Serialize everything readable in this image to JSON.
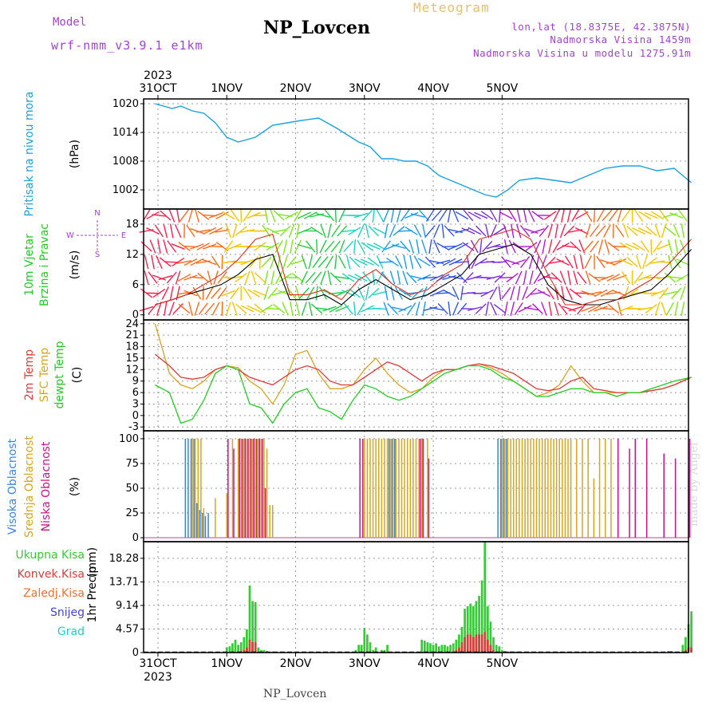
{
  "header": {
    "model_label": "Model",
    "model_name": "wrf-nmm_v3.9.1 e1km",
    "station_title": "NP_Lovcen",
    "meteogram_label": "Meteogram",
    "info_lonlat": "lon,lat (18.8375E, 42.3875N)",
    "info_altitude": "Nadmorska Visina 1459m",
    "info_model_altitude": "Nadmorska Visina u modelu 1275.91m",
    "bottom_station": "NP_Lovcen",
    "made_by": "made by Angel",
    "top_year": "2023",
    "bottom_year": "2023"
  },
  "colors": {
    "pressure": "#1ba1e2",
    "wind_speed": "#000000",
    "wind_gust": "#e0301e",
    "temp_2m": "#e03a3a",
    "temp_sfc": "#d9a520",
    "dewpoint": "#22cc22",
    "cloud_high": "#3a86dd",
    "cloud_mid": "#d9a520",
    "cloud_low": "#cc1188",
    "precip_total": "#33cc33",
    "precip_conv": "#e03a3a",
    "precip_frozen": "#f07030",
    "snow": "#4444dd",
    "graupel": "#22cccc",
    "grid": "#999999",
    "wind_compass": "#a63fd8"
  },
  "chart_data": [
    {
      "type": "line",
      "panel": "pressure",
      "ylabel": "Pritisak na nivou mora",
      "yunit": "(hPa)",
      "y_ticks": [
        1002,
        1008,
        1014,
        1020
      ],
      "ylim": [
        998,
        1021
      ],
      "x_ticks": [
        "31OCT",
        "1NOV",
        "2NOV",
        "3NOV",
        "4NOV",
        "5NOV"
      ],
      "x_hours": [
        -1,
        5,
        8,
        12,
        16,
        20,
        24,
        28,
        34,
        40,
        45,
        50,
        56,
        62,
        66,
        70,
        74,
        78,
        82,
        86,
        90,
        94,
        98,
        102,
        106,
        110,
        114,
        118,
        122,
        126,
        132,
        138,
        144,
        150,
        156,
        162,
        168,
        174,
        180,
        186
      ],
      "series": [
        {
          "values": [
            1020,
            1019,
            1019.5,
            1018.5,
            1018,
            1016,
            1013,
            1012,
            1013,
            1015.5,
            1016,
            1016.5,
            1017,
            1015,
            1013.5,
            1012,
            1011,
            1008.5,
            1008.5,
            1008,
            1008,
            1007,
            1005,
            1004,
            1003,
            1002,
            1001,
            1000.5,
            1002,
            1004,
            1004.5,
            1004,
            1003.5,
            1005,
            1006.5,
            1007,
            1007,
            1006,
            1006.5,
            1003.5
          ]
        }
      ]
    },
    {
      "type": "line",
      "panel": "wind",
      "ylabel": "10m Vjetar Brzina i Pravac",
      "yunit": "(m/s)",
      "y_ticks": [
        0,
        6,
        12,
        18
      ],
      "ylim": [
        -1,
        21
      ],
      "x_hours": [
        -1,
        5,
        10,
        16,
        22,
        28,
        34,
        40,
        46,
        52,
        58,
        64,
        70,
        76,
        82,
        88,
        94,
        100,
        106,
        112,
        118,
        124,
        130,
        136,
        142,
        148,
        154,
        160,
        166,
        172,
        178,
        186
      ],
      "series": [
        {
          "name": "speed",
          "values": [
            2,
            3,
            4,
            5,
            6,
            8,
            11,
            12,
            3,
            3,
            4,
            2,
            5,
            7,
            5,
            3,
            4,
            6,
            8,
            12,
            13,
            14,
            12,
            6,
            3,
            2,
            2,
            3,
            4,
            5,
            8,
            13
          ]
        },
        {
          "name": "gust",
          "values": [
            2,
            3,
            4,
            6,
            8,
            11,
            15,
            16,
            4,
            4,
            5,
            3,
            7,
            9,
            6,
            4,
            5,
            8,
            10,
            15,
            16,
            17,
            15,
            8,
            2,
            2,
            3,
            3,
            5,
            7,
            10,
            15
          ]
        }
      ],
      "compass": {
        "n": "N",
        "s": "S",
        "e": "E",
        "w": "W"
      }
    },
    {
      "type": "line",
      "panel": "temperature",
      "ylabel_lines": [
        "2m Temp",
        "SFC Temp",
        "dewpt Temp"
      ],
      "yunit": "(C)",
      "y_ticks": [
        -3,
        0,
        3,
        6,
        9,
        12,
        15,
        18,
        21,
        24
      ],
      "ylim": [
        -4,
        25
      ],
      "x_hours": [
        -1,
        4,
        8,
        12,
        16,
        20,
        24,
        28,
        32,
        36,
        40,
        44,
        48,
        52,
        56,
        60,
        64,
        68,
        72,
        76,
        80,
        84,
        88,
        92,
        96,
        100,
        104,
        108,
        112,
        116,
        120,
        124,
        128,
        132,
        136,
        140,
        144,
        148,
        152,
        156,
        160,
        164,
        168,
        172,
        176,
        180,
        186
      ],
      "series": [
        {
          "name": "2m Temp",
          "values": [
            16,
            13,
            10,
            9.5,
            10,
            12,
            13,
            12,
            10,
            9,
            8,
            10,
            12,
            13,
            12,
            9,
            8,
            8,
            10,
            12,
            14,
            13,
            11,
            9,
            11,
            12,
            12,
            13,
            13.5,
            13,
            12,
            11,
            9,
            7,
            6.5,
            7,
            9,
            10,
            7,
            6.5,
            6,
            6,
            6,
            6.5,
            7,
            8,
            10
          ]
        },
        {
          "name": "SFC Temp",
          "values": [
            24,
            11,
            8,
            7,
            9,
            12,
            13,
            12.5,
            9,
            7,
            3,
            8,
            16,
            17,
            11,
            7,
            7,
            8,
            12,
            15,
            11,
            8,
            6,
            7,
            10,
            12,
            12,
            13,
            13.5,
            12.5,
            11,
            9,
            7,
            5,
            6,
            8,
            13,
            9,
            6,
            6,
            6,
            6,
            6,
            6.5,
            7,
            8,
            10
          ]
        },
        {
          "name": "dewpt Temp",
          "values": [
            8,
            6,
            -2,
            -1,
            4,
            11,
            13,
            12,
            3,
            2,
            -2,
            3,
            6,
            7,
            2,
            1,
            -1,
            4,
            8,
            7,
            5,
            4,
            5,
            7,
            9,
            11,
            12,
            13,
            13,
            12,
            10,
            9,
            7,
            5,
            5,
            6,
            7,
            7,
            6,
            6,
            5,
            6,
            6,
            7,
            8,
            9,
            10
          ]
        }
      ]
    },
    {
      "type": "bar",
      "panel": "clouds",
      "ylabel_lines": [
        "Visoka Oblacnost",
        "Srednja Oblacnost",
        "Niska Oblacnost"
      ],
      "yunit": "(%)",
      "y_ticks": [
        0,
        25,
        50,
        75,
        100
      ],
      "ylim": [
        -4,
        108
      ],
      "x_hours": [
        10,
        11,
        12,
        13,
        14,
        15,
        16,
        17,
        18,
        20,
        24,
        26,
        28,
        29,
        30,
        31,
        32,
        33,
        34,
        35,
        36,
        37,
        38,
        39,
        40,
        42,
        45,
        51,
        60,
        62,
        66,
        69,
        70,
        71,
        72,
        73,
        74,
        75,
        76,
        77,
        78,
        79,
        80,
        81,
        82,
        83,
        84,
        85,
        86,
        87,
        88,
        89,
        90,
        91,
        92,
        94,
        96,
        104,
        108,
        110,
        112,
        116,
        119,
        120,
        121,
        122,
        123,
        124,
        125,
        126,
        127,
        128,
        129,
        130,
        131,
        132,
        133,
        134,
        135,
        136,
        137,
        138,
        139,
        140,
        141,
        142,
        143,
        144,
        146,
        148,
        150,
        152,
        154,
        156,
        158,
        160,
        162,
        164,
        166,
        170,
        172,
        176,
        178,
        180,
        182,
        185
      ],
      "series": [
        {
          "name": "Visoka Oblacnost",
          "values": [
            100,
            100,
            100,
            100,
            35,
            28,
            25,
            22,
            25,
            0,
            0,
            0,
            0,
            0,
            0,
            0,
            0,
            0,
            0,
            0,
            0,
            0,
            0,
            0,
            0,
            0,
            0,
            0,
            0,
            0,
            0,
            0,
            0,
            0,
            0,
            0,
            0,
            0,
            0,
            0,
            0,
            0,
            0,
            100,
            100,
            100,
            0,
            0,
            0,
            0,
            0,
            0,
            0,
            0,
            0,
            0,
            0,
            0,
            0,
            0,
            0,
            0,
            100,
            100,
            100,
            100,
            0,
            0,
            0,
            0,
            0,
            0,
            0,
            0,
            0,
            0,
            0,
            0,
            0,
            0,
            0,
            0,
            0,
            0,
            0,
            0,
            0,
            0,
            0,
            0,
            0,
            0,
            0,
            0,
            0,
            0,
            0,
            0,
            0,
            0,
            0,
            0,
            0,
            0,
            0,
            0
          ]
        },
        {
          "name": "Srednja Oblacnost",
          "values": [
            0,
            0,
            100,
            100,
            100,
            100,
            30,
            0,
            0,
            40,
            45,
            100,
            100,
            100,
            100,
            100,
            100,
            100,
            100,
            100,
            100,
            100,
            90,
            33,
            33,
            0,
            0,
            0,
            0,
            0,
            0,
            0,
            0,
            0,
            100,
            100,
            100,
            100,
            100,
            100,
            100,
            100,
            100,
            100,
            100,
            100,
            100,
            100,
            100,
            100,
            100,
            100,
            100,
            100,
            100,
            100,
            0,
            0,
            0,
            0,
            0,
            0,
            0,
            100,
            100,
            100,
            100,
            100,
            100,
            100,
            100,
            100,
            100,
            100,
            100,
            100,
            100,
            100,
            100,
            100,
            100,
            100,
            100,
            100,
            100,
            100,
            100,
            100,
            100,
            100,
            100,
            60,
            100,
            100,
            100,
            0,
            0,
            0,
            0,
            0,
            0,
            0,
            0,
            0,
            0,
            60
          ]
        },
        {
          "name": "Niska Oblacnost",
          "values": [
            0,
            0,
            0,
            0,
            0,
            0,
            0,
            0,
            0,
            0,
            100,
            90,
            100,
            100,
            100,
            100,
            100,
            100,
            100,
            100,
            100,
            50,
            0,
            0,
            0,
            0,
            0,
            0,
            0,
            0,
            0,
            0,
            100,
            100,
            0,
            0,
            0,
            0,
            0,
            0,
            0,
            0,
            0,
            0,
            0,
            0,
            0,
            0,
            0,
            0,
            0,
            0,
            0,
            100,
            100,
            80,
            0,
            0,
            0,
            0,
            0,
            0,
            0,
            0,
            0,
            0,
            0,
            0,
            0,
            0,
            0,
            0,
            0,
            0,
            0,
            0,
            0,
            0,
            0,
            0,
            0,
            0,
            0,
            0,
            0,
            0,
            0,
            0,
            0,
            0,
            0,
            0,
            0,
            0,
            0,
            100,
            0,
            90,
            100,
            100,
            0,
            85,
            0,
            80,
            0,
            100
          ]
        }
      ]
    },
    {
      "type": "bar",
      "panel": "precipitation",
      "ylabel": "1hr Precip",
      "yunit": "(mm)",
      "legend": [
        "Ukupna Kisa",
        "Konvek.Kisa",
        "Zaledj.Kisa",
        "Snijeg",
        "Grad"
      ],
      "y_ticks": [
        0,
        4.57,
        9.14,
        13.71,
        18.28
      ],
      "ylim": [
        0,
        21.5
      ],
      "x_hours": [
        24,
        25,
        26,
        27,
        28,
        29,
        30,
        31,
        32,
        33,
        34,
        35,
        36,
        37,
        38,
        40,
        69,
        70,
        71,
        72,
        73,
        74,
        75,
        76,
        78,
        79,
        80,
        92,
        93,
        94,
        95,
        96,
        97,
        98,
        99,
        100,
        101,
        102,
        103,
        104,
        105,
        106,
        107,
        108,
        109,
        110,
        111,
        112,
        113,
        114,
        115,
        116,
        117,
        118,
        119,
        120,
        121,
        122,
        123,
        124,
        125,
        126,
        178,
        179,
        183,
        184,
        185,
        186
      ],
      "series": [
        {
          "name": "Ukupna Kisa",
          "values": [
            1,
            1.2,
            1.8,
            2.5,
            1.5,
            2,
            3,
            4.5,
            13,
            10,
            9.8,
            1,
            0.5,
            0.5,
            0.3,
            0.2,
            0.5,
            1.5,
            1.5,
            4.8,
            3.5,
            2,
            0.5,
            1,
            0.5,
            0.5,
            1.5,
            2.5,
            2.3,
            2,
            1.8,
            1.5,
            1.8,
            1.2,
            1.5,
            1.5,
            1.2,
            1.5,
            1.8,
            2.5,
            3.5,
            5,
            8.5,
            9,
            9.5,
            9,
            10,
            11,
            14,
            21.5,
            9,
            6,
            3,
            1.5,
            1.2,
            0.5,
            0.3,
            0.2,
            0.2,
            0.2,
            0.2,
            0.2,
            0.3,
            0.3,
            1.5,
            3,
            5.5,
            8
          ]
        },
        {
          "name": "Konvek.Kisa",
          "values": [
            0,
            0,
            0,
            0,
            0,
            0.3,
            0.5,
            1,
            2.5,
            2,
            2,
            0,
            0,
            0,
            0,
            0,
            0,
            0,
            0,
            0,
            0,
            0,
            0,
            0,
            0,
            0,
            0,
            0,
            0,
            0,
            0,
            0,
            0,
            0,
            0,
            0,
            0,
            0,
            0,
            0.5,
            1,
            2,
            3,
            3.5,
            3.5,
            3,
            3.5,
            3.5,
            3.5,
            4,
            2.5,
            1.5,
            0.5,
            0,
            0,
            0,
            0,
            0,
            0,
            0,
            0,
            0,
            0,
            0,
            0,
            0.5,
            1,
            1
          ]
        }
      ]
    }
  ]
}
